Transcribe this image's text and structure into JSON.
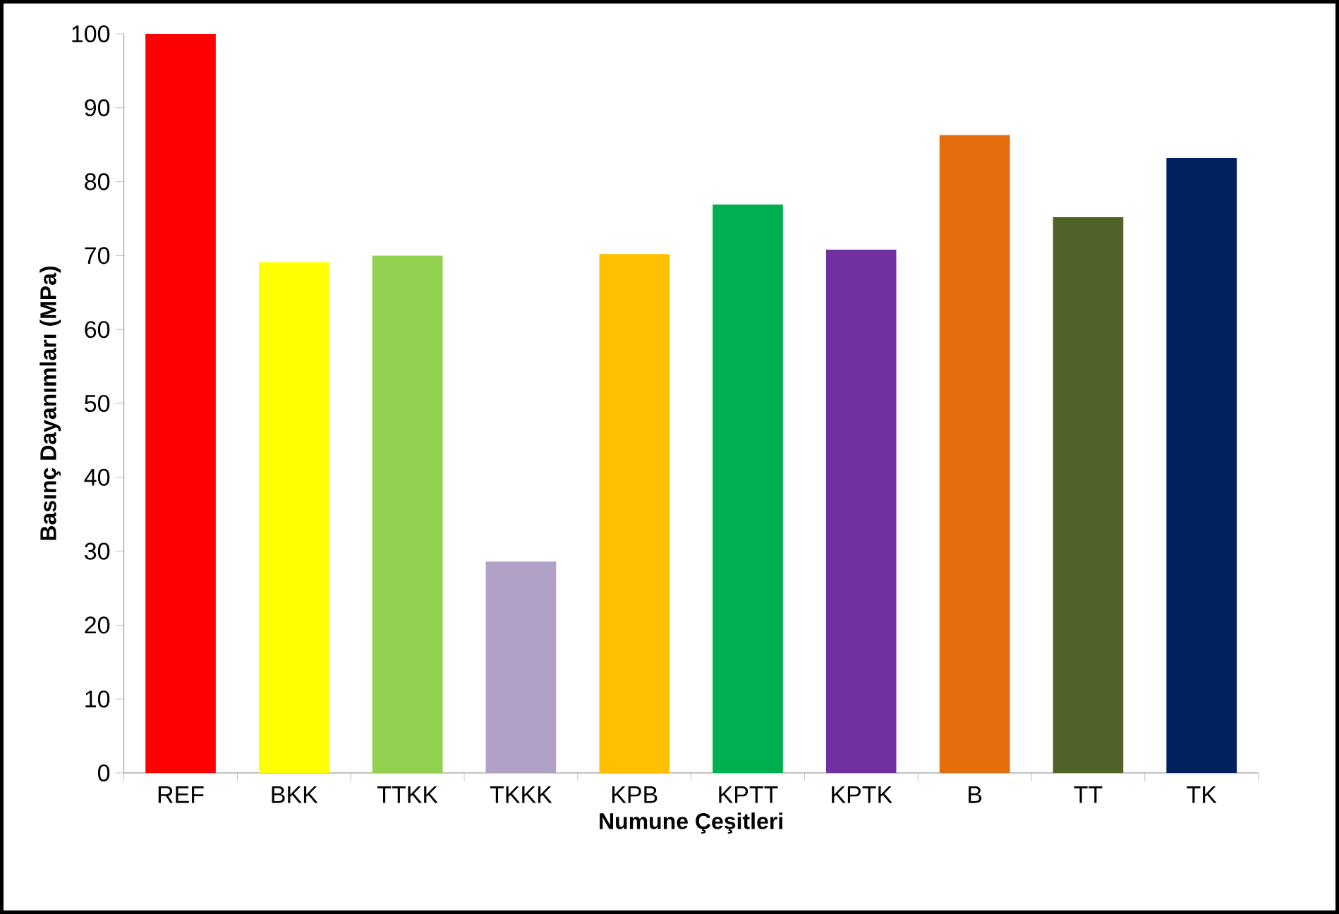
{
  "chart_data": {
    "type": "bar",
    "xlabel": "Numune Çeşitleri",
    "ylabel": "Basınç Dayanımları (MPa)",
    "categories": [
      "REF",
      "BKK",
      "TTKK",
      "TKKK",
      "KPB",
      "KPTT",
      "KPTK",
      "B",
      "TT",
      "TK"
    ],
    "values": [
      100,
      69.1,
      70.0,
      28.6,
      70.2,
      76.9,
      70.8,
      86.3,
      75.2,
      83.2
    ],
    "colors": [
      "#ff0000",
      "#ffff00",
      "#92d050",
      "#b2a1c7",
      "#ffc000",
      "#00b050",
      "#7030a0",
      "#e46c0a",
      "#4f6228",
      "#002060"
    ],
    "ylim": [
      0,
      100
    ],
    "yticks": [
      0,
      10,
      20,
      30,
      40,
      50,
      60,
      70,
      80,
      90,
      100
    ],
    "grid": false
  }
}
